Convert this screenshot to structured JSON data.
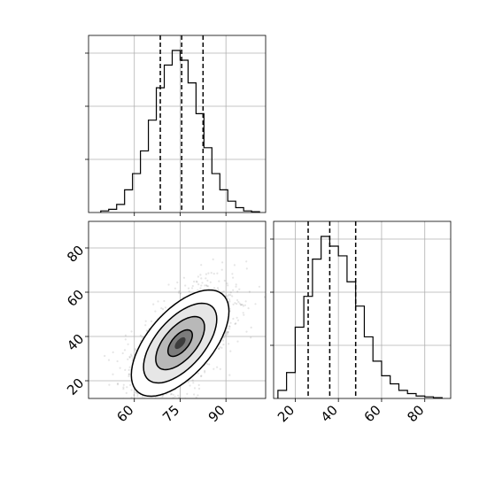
{
  "chart_data": [
    {
      "id": "hist-x",
      "type": "histogram",
      "xlim": [
        45,
        103
      ],
      "bin_edges": [
        49,
        51.6,
        54.2,
        56.8,
        59.4,
        62,
        64.6,
        67.2,
        69.8,
        72.4,
        75,
        77.6,
        80.2,
        82.8,
        85.4,
        88,
        90.6,
        93.2,
        95.8,
        98.4,
        101
      ],
      "counts": [
        0.01,
        0.02,
        0.05,
        0.14,
        0.24,
        0.38,
        0.57,
        0.77,
        0.91,
        1.0,
        0.94,
        0.8,
        0.61,
        0.4,
        0.24,
        0.14,
        0.07,
        0.03,
        0.01,
        0.005
      ],
      "quantile_lines": [
        68.5,
        75.5,
        82.5
      ],
      "grid": true,
      "x_ticks": [
        60,
        75,
        90
      ],
      "y_tick_fractions": [
        0.3,
        0.6,
        0.9
      ]
    },
    {
      "id": "scatter-xy",
      "type": "scatter",
      "xlim": [
        45,
        103
      ],
      "ylim": [
        12,
        92
      ],
      "grid": true,
      "x_ticks": [
        60,
        75,
        90
      ],
      "x_tick_labels": [
        "60",
        "75",
        "90"
      ],
      "y_ticks": [
        20,
        40,
        60,
        80
      ],
      "y_tick_labels": [
        "20",
        "40",
        "60",
        "80"
      ],
      "mean": [
        75,
        37
      ],
      "std": [
        8,
        12
      ],
      "correlation": 0.6,
      "contour_levels": [
        0.5,
        1.0,
        1.5,
        2.0
      ]
    },
    {
      "id": "hist-y",
      "type": "histogram",
      "xlim": [
        10,
        92
      ],
      "bin_edges": [
        12,
        16,
        20,
        24,
        28,
        32,
        36,
        40,
        44,
        48,
        52,
        56,
        60,
        64,
        68,
        72,
        76,
        80,
        84,
        88
      ],
      "counts": [
        0.05,
        0.16,
        0.44,
        0.63,
        0.86,
        1.0,
        0.94,
        0.88,
        0.72,
        0.57,
        0.38,
        0.23,
        0.14,
        0.09,
        0.05,
        0.03,
        0.015,
        0.01,
        0.005
      ],
      "quantile_lines": [
        26,
        36,
        48
      ],
      "grid": true,
      "x_ticks": [
        20,
        40,
        60,
        80
      ],
      "x_tick_labels": [
        "20",
        "40",
        "60",
        "80"
      ],
      "y_tick_fractions": [
        0.3,
        0.6,
        0.9
      ]
    }
  ]
}
